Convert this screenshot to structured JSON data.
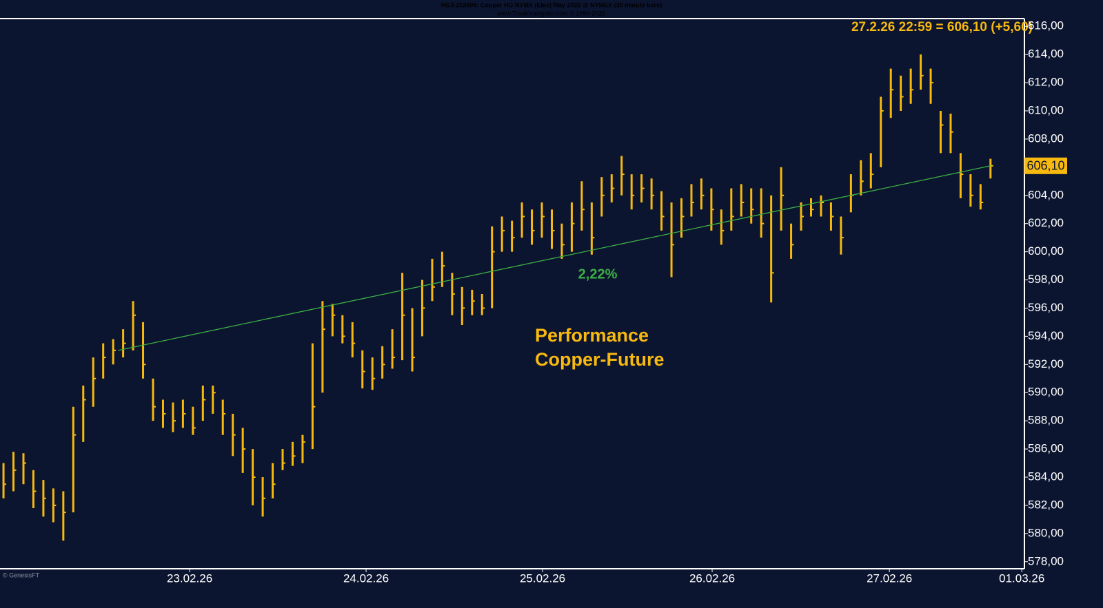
{
  "chart_data": {
    "type": "ohlc",
    "header": [
      "HG3-202605: Copper HG NYMX (Elec) May 2026 @ NYMEX (30 minute bars)",
      "www.TradeNavigator.com © 1999-2026"
    ],
    "info": "27.2.26 22:59 = 606,10 (+5,60)",
    "last_price_label": "606,10",
    "annotation": [
      "Performance",
      "Copper-Future"
    ],
    "trendline": {
      "label": "2,22%",
      "color": "#3cb043",
      "x": [
        11.5,
        99
      ],
      "y": [
        593,
        606.1
      ]
    },
    "credit": "© GenesisFT",
    "color": "#f7b90f",
    "xlim": [
      -0.35,
      102.4
    ],
    "xticks": [
      {
        "value": 18.67,
        "label": "23.02.26"
      },
      {
        "value": 36.37,
        "label": "24.02.26"
      },
      {
        "value": 54.07,
        "label": "25.02.26"
      },
      {
        "value": 71.08,
        "label": "26.02.26"
      },
      {
        "value": 88.86,
        "label": "27.02.26"
      },
      {
        "value": 102.14,
        "label": "01.03.26"
      }
    ],
    "ylim": [
      577.5,
      616.5
    ],
    "yticks": [
      {
        "value": 578,
        "label": "578,00"
      },
      {
        "value": 580,
        "label": "580,00"
      },
      {
        "value": 582,
        "label": "582,00"
      },
      {
        "value": 584,
        "label": "584,00"
      },
      {
        "value": 586,
        "label": "586,00"
      },
      {
        "value": 588,
        "label": "588,00"
      },
      {
        "value": 590,
        "label": "590,00"
      },
      {
        "value": 592,
        "label": "592,00"
      },
      {
        "value": 594,
        "label": "594,00"
      },
      {
        "value": 596,
        "label": "596,00"
      },
      {
        "value": 598,
        "label": "598,00"
      },
      {
        "value": 600,
        "label": "600,00"
      },
      {
        "value": 602,
        "label": "602,00"
      },
      {
        "value": 604,
        "label": "604,00"
      },
      {
        "value": 606,
        "label": "606,00"
      },
      {
        "value": 608,
        "label": "608,00"
      },
      {
        "value": 610,
        "label": "610,00"
      },
      {
        "value": 612,
        "label": "612,00"
      },
      {
        "value": 614,
        "label": "614,00"
      },
      {
        "value": 616,
        "label": "616,00"
      }
    ],
    "high": [
      585,
      585.8,
      585.7,
      584.5,
      583.8,
      583.2,
      583,
      589,
      590.5,
      592.5,
      593.5,
      593.8,
      594.5,
      596.5,
      595,
      591,
      589.5,
      589.3,
      589.5,
      589,
      590.5,
      590.5,
      589.5,
      588.5,
      587.5,
      586,
      584,
      585,
      586,
      586.5,
      587,
      593.5,
      596.5,
      596.3,
      595.5,
      595,
      593,
      592.5,
      593.3,
      594.5,
      598.5,
      596,
      598,
      599.5,
      600,
      598.5,
      597.5,
      597.3,
      597,
      601.8,
      602.5,
      602.2,
      603.5,
      603,
      603.5,
      603,
      602,
      603.5,
      605,
      603.5,
      605.3,
      605.5,
      606.8,
      605.5,
      605.5,
      605.2,
      604.3,
      603.5,
      603.8,
      604.8,
      605.2,
      604.5,
      603,
      604.5,
      604.8,
      604.5,
      604.5,
      604,
      606,
      602,
      603.5,
      603.8,
      604,
      603.5,
      602.5,
      605.5,
      606.5,
      607,
      611,
      613,
      612.5,
      613,
      614,
      613,
      610,
      609.8,
      607,
      605.5,
      604.8,
      606.6
    ],
    "low": [
      582.5,
      583,
      583.5,
      581.8,
      581.2,
      580.8,
      579.5,
      581.5,
      586.5,
      589,
      591,
      592,
      592.5,
      593,
      591,
      588,
      587.5,
      587.2,
      587.5,
      587,
      588,
      588.5,
      587,
      585.5,
      584.3,
      582,
      581.2,
      582.5,
      584.5,
      584.8,
      585,
      586,
      590,
      594,
      593.5,
      592.5,
      590.3,
      590.2,
      591,
      591.7,
      592.3,
      591.5,
      594,
      596.5,
      597.5,
      595.5,
      594.8,
      595.5,
      595.5,
      596,
      600,
      600,
      601,
      600.5,
      601,
      600.2,
      599.5,
      600,
      601.5,
      599.8,
      602.5,
      603.5,
      604,
      603,
      603.5,
      603,
      601.5,
      598.2,
      601,
      602.5,
      603,
      601.5,
      600.5,
      601.5,
      602.5,
      602,
      601,
      596.4,
      601.5,
      599.5,
      601.5,
      602.5,
      602.5,
      601.5,
      599.8,
      602.8,
      604,
      604.5,
      606,
      609.5,
      610,
      610.5,
      611.5,
      610.5,
      607,
      607,
      603.8,
      603.2,
      603,
      605.2
    ],
    "close": [
      583.5,
      584.5,
      585,
      583,
      582.5,
      582,
      581.5,
      587,
      589.5,
      591,
      592.5,
      593,
      593.5,
      595.5,
      592,
      589,
      588.5,
      588,
      588.5,
      587.5,
      589.5,
      590,
      588.5,
      587,
      586,
      584,
      582.5,
      583.5,
      585,
      585.5,
      586.5,
      589,
      594.5,
      595.5,
      594,
      593.5,
      591.5,
      591,
      592,
      592.5,
      595.5,
      592.5,
      596,
      597.5,
      599,
      597,
      596,
      596.5,
      596,
      600,
      601.5,
      601,
      602.5,
      601.5,
      602.5,
      601.5,
      600.5,
      602,
      603,
      601,
      604,
      604.5,
      605.5,
      604,
      604.5,
      604,
      602.5,
      600.5,
      602.5,
      603.5,
      604,
      603,
      601.5,
      602.5,
      603.5,
      603,
      602,
      598.5,
      604,
      600.5,
      602.5,
      603,
      603.5,
      602.5,
      601,
      604,
      605,
      605.5,
      610,
      611.5,
      611,
      611.5,
      612.5,
      612,
      609,
      608.5,
      605.5,
      604,
      603.5,
      606.1
    ]
  }
}
